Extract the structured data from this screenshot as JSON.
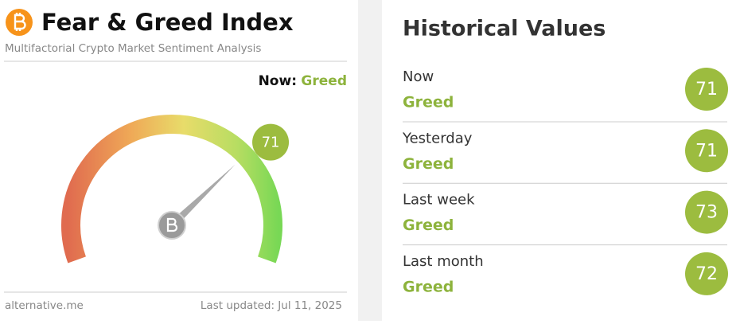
{
  "header": {
    "title": "Fear & Greed Index",
    "subtitle": "Multifactorial Crypto Market Sentiment Analysis"
  },
  "now": {
    "label": "Now:",
    "classification": "Greed"
  },
  "gauge": {
    "value": 71,
    "range": [
      0,
      100
    ]
  },
  "footer": {
    "source": "alternative.me",
    "updated": "Last updated: Jul 11, 2025"
  },
  "history": {
    "title": "Historical Values",
    "items": [
      {
        "label": "Now",
        "classification": "Greed",
        "value": 71
      },
      {
        "label": "Yesterday",
        "classification": "Greed",
        "value": 71
      },
      {
        "label": "Last week",
        "classification": "Greed",
        "value": 73
      },
      {
        "label": "Last month",
        "classification": "Greed",
        "value": 72
      }
    ]
  }
}
